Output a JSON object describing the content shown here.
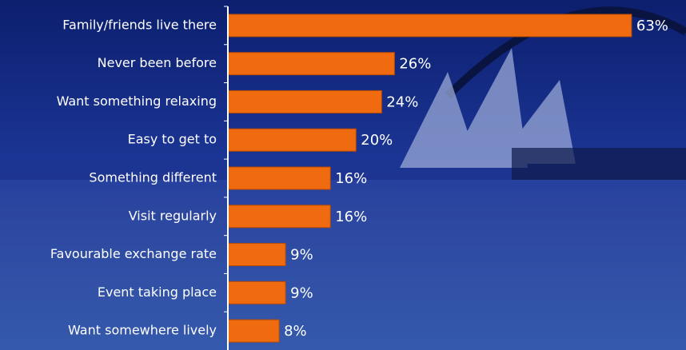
{
  "chart_data": {
    "type": "hbar",
    "categories": [
      "Family/friends live there",
      "Never been before",
      "Want something relaxing",
      "Easy to get to",
      "Something different",
      "Visit regularly",
      "Favourable exchange rate",
      "Event taking place",
      "Want somewhere lively"
    ],
    "values": [
      63,
      26,
      24,
      20,
      16,
      16,
      9,
      9,
      8
    ],
    "value_labels": [
      "63%",
      "26%",
      "24%",
      "20%",
      "16%",
      "16%",
      "9%",
      "9%",
      "8%"
    ],
    "color": "#f06a10",
    "xlim": [
      0,
      70
    ]
  }
}
